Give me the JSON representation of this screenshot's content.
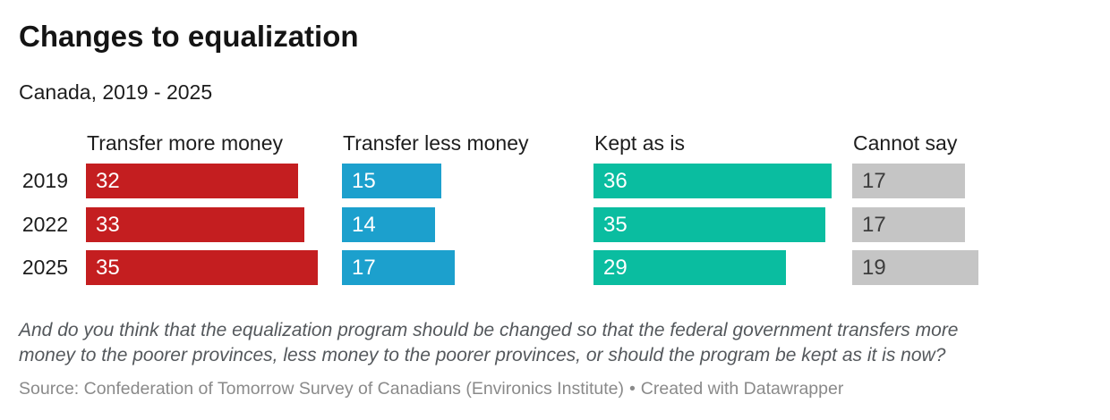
{
  "chart": {
    "title": "Changes to equalization",
    "subtitle": "Canada, 2019 - 2025",
    "description_line1": "And do you think that the equalization program should be changed so that the federal government transfers more",
    "description_line2": "money to the poorer provinces, less money to the poorer provinces, or should the program be kept as it is now?",
    "source_text": "Source: Confederation of Tomorrow Survey of Canadians (Environics Institute)",
    "separator": "•",
    "attribution": "Created with Datawrapper"
  },
  "chart_data": {
    "type": "bar",
    "variant": "horizontal-split-bars",
    "title": "Changes to equalization",
    "subtitle": "Canada, 2019 - 2025",
    "categories": [
      "2019",
      "2022",
      "2025"
    ],
    "series": [
      {
        "name": "Transfer more money",
        "color": "#c41e20",
        "label_color": "#ffffff",
        "values": [
          32,
          33,
          35
        ]
      },
      {
        "name": "Transfer less money",
        "color": "#1ca0cd",
        "label_color": "#ffffff",
        "values": [
          15,
          14,
          17
        ]
      },
      {
        "name": "Kept as is",
        "color": "#0abda0",
        "label_color": "#ffffff",
        "values": [
          36,
          35,
          29
        ]
      },
      {
        "name": "Cannot say",
        "color": "#c5c5c5",
        "label_color": "#3d3d3d",
        "values": [
          17,
          17,
          19
        ]
      }
    ],
    "value_labels_shown_inside_bars": true,
    "xlim": [
      0,
      38
    ],
    "grid": false,
    "axes_shown": false,
    "legend_position": "column-headers-above-bars"
  }
}
